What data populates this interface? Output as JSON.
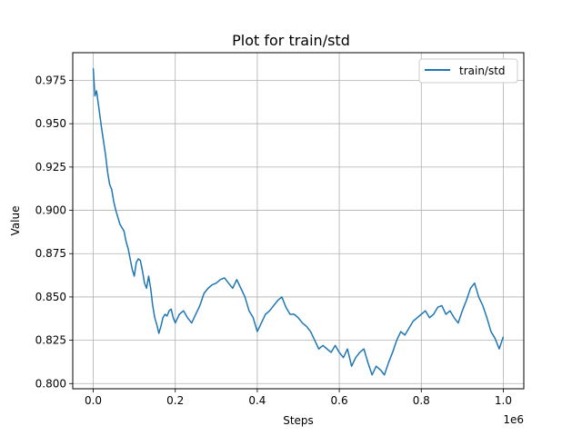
{
  "chart_data": {
    "type": "line",
    "title": "Plot for train/std",
    "xlabel": "Steps",
    "ylabel": "Value",
    "x_offset_label": "1e6",
    "xlim": [
      -0.05,
      1.05
    ],
    "ylim": [
      0.797,
      0.991
    ],
    "x_ticks": [
      0.0,
      0.2,
      0.4,
      0.6,
      0.8,
      1.0
    ],
    "x_tick_labels": [
      "0.0",
      "0.2",
      "0.4",
      "0.6",
      "0.8",
      "1.0"
    ],
    "y_ticks": [
      0.8,
      0.825,
      0.85,
      0.875,
      0.9,
      0.925,
      0.95,
      0.975
    ],
    "y_tick_labels": [
      "0.800",
      "0.825",
      "0.850",
      "0.875",
      "0.900",
      "0.925",
      "0.950",
      "0.975"
    ],
    "grid": true,
    "legend_position": "top-right",
    "series": [
      {
        "name": "train/std",
        "color": "#1f77b4",
        "x": [
          0.0,
          0.004,
          0.008,
          0.012,
          0.016,
          0.02,
          0.025,
          0.03,
          0.035,
          0.04,
          0.045,
          0.05,
          0.055,
          0.06,
          0.065,
          0.07,
          0.075,
          0.08,
          0.085,
          0.09,
          0.095,
          0.1,
          0.105,
          0.11,
          0.115,
          0.12,
          0.125,
          0.13,
          0.135,
          0.14,
          0.145,
          0.15,
          0.155,
          0.16,
          0.165,
          0.17,
          0.175,
          0.18,
          0.185,
          0.19,
          0.195,
          0.2,
          0.21,
          0.22,
          0.23,
          0.24,
          0.25,
          0.26,
          0.27,
          0.28,
          0.29,
          0.3,
          0.31,
          0.32,
          0.33,
          0.34,
          0.35,
          0.36,
          0.37,
          0.38,
          0.39,
          0.4,
          0.41,
          0.42,
          0.43,
          0.44,
          0.45,
          0.46,
          0.47,
          0.48,
          0.49,
          0.5,
          0.51,
          0.52,
          0.53,
          0.54,
          0.55,
          0.56,
          0.57,
          0.58,
          0.59,
          0.6,
          0.61,
          0.62,
          0.63,
          0.64,
          0.65,
          0.66,
          0.67,
          0.68,
          0.69,
          0.7,
          0.71,
          0.72,
          0.73,
          0.74,
          0.75,
          0.76,
          0.77,
          0.78,
          0.79,
          0.8,
          0.81,
          0.82,
          0.83,
          0.84,
          0.85,
          0.86,
          0.87,
          0.88,
          0.89,
          0.9,
          0.91,
          0.92,
          0.93,
          0.94,
          0.95,
          0.96,
          0.97,
          0.98,
          0.99,
          1.0
        ],
        "y": [
          0.982,
          0.966,
          0.969,
          0.962,
          0.955,
          0.948,
          0.94,
          0.932,
          0.922,
          0.915,
          0.912,
          0.905,
          0.9,
          0.896,
          0.892,
          0.89,
          0.888,
          0.882,
          0.878,
          0.872,
          0.866,
          0.862,
          0.87,
          0.872,
          0.871,
          0.865,
          0.858,
          0.855,
          0.862,
          0.855,
          0.845,
          0.838,
          0.834,
          0.829,
          0.833,
          0.838,
          0.84,
          0.839,
          0.842,
          0.843,
          0.838,
          0.835,
          0.84,
          0.842,
          0.838,
          0.835,
          0.84,
          0.845,
          0.852,
          0.855,
          0.857,
          0.858,
          0.86,
          0.861,
          0.858,
          0.855,
          0.86,
          0.855,
          0.85,
          0.842,
          0.838,
          0.83,
          0.835,
          0.84,
          0.842,
          0.845,
          0.848,
          0.85,
          0.844,
          0.84,
          0.84,
          0.838,
          0.835,
          0.833,
          0.83,
          0.825,
          0.82,
          0.822,
          0.82,
          0.818,
          0.822,
          0.818,
          0.815,
          0.82,
          0.81,
          0.815,
          0.818,
          0.82,
          0.812,
          0.805,
          0.81,
          0.808,
          0.805,
          0.812,
          0.818,
          0.825,
          0.83,
          0.828,
          0.832,
          0.836,
          0.838,
          0.84,
          0.842,
          0.838,
          0.84,
          0.844,
          0.845,
          0.84,
          0.842,
          0.838,
          0.835,
          0.842,
          0.848,
          0.855,
          0.858,
          0.85,
          0.845,
          0.838,
          0.83,
          0.826,
          0.82,
          0.827
        ]
      }
    ]
  }
}
